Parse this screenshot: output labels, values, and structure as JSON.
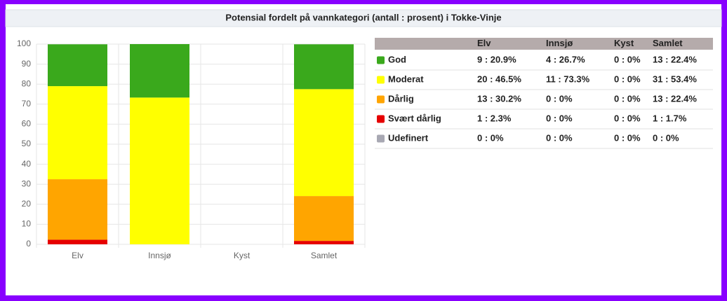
{
  "title": "Potensial fordelt på vannkategori (antall : prosent) i Tokke-Vinje",
  "chart_data": {
    "type": "stacked_bar",
    "categories": [
      "Elv",
      "Innsjø",
      "Kyst",
      "Samlet"
    ],
    "series": [
      {
        "name": "God",
        "color": "#3aa91c",
        "values": [
          20.9,
          26.7,
          0,
          22.4
        ]
      },
      {
        "name": "Moderat",
        "color": "#ffff00",
        "values": [
          46.5,
          73.3,
          0,
          53.4
        ]
      },
      {
        "name": "Dårlig",
        "color": "#ffa500",
        "values": [
          30.2,
          0,
          0,
          22.4
        ]
      },
      {
        "name": "Svært dårlig",
        "color": "#e60000",
        "values": [
          2.3,
          0,
          0,
          1.7
        ]
      },
      {
        "name": "Udefinert",
        "color": "#a8a8b3",
        "values": [
          0,
          0,
          0,
          0
        ]
      }
    ],
    "ylim": [
      0,
      100
    ],
    "yticks": [
      0,
      10,
      20,
      30,
      40,
      50,
      60,
      70,
      80,
      90,
      100
    ],
    "grid": true
  },
  "table": {
    "rows": [
      [
        "9 : 20.9%",
        "4 : 26.7%",
        "0 : 0%",
        "13 : 22.4%"
      ],
      [
        "20 : 46.5%",
        "11 : 73.3%",
        "0 : 0%",
        "31 : 53.4%"
      ],
      [
        "13 : 30.2%",
        "0 : 0%",
        "0 : 0%",
        "13 : 22.4%"
      ],
      [
        "1 : 2.3%",
        "0 : 0%",
        "0 : 0%",
        "1 : 1.7%"
      ],
      [
        "0 : 0%",
        "0 : 0%",
        "0 : 0%",
        "0 : 0%"
      ]
    ]
  }
}
